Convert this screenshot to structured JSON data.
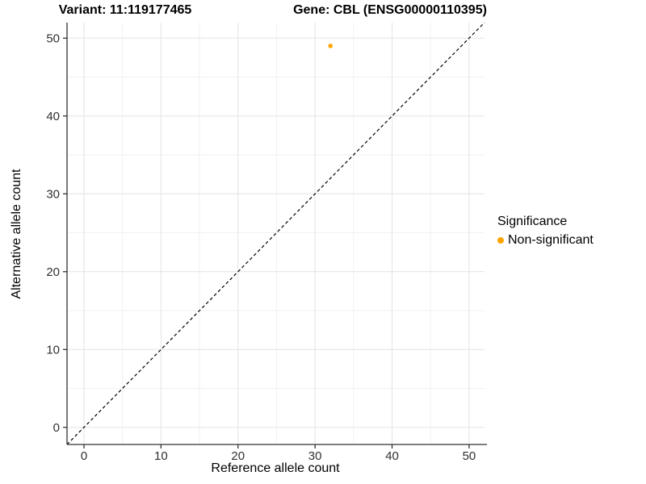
{
  "titles": {
    "left": "Variant: 11:119177465",
    "right": "Gene: CBL (ENSG00000110395)"
  },
  "chart_data": {
    "type": "scatter",
    "xlabel": "Reference allele count",
    "ylabel": "Alternative allele count",
    "xlim": [
      -2.2,
      52.0
    ],
    "ylim": [
      -2.2,
      52.0
    ],
    "xticks": [
      0,
      10,
      20,
      30,
      40,
      50
    ],
    "yticks": [
      0,
      10,
      20,
      30,
      40,
      50
    ],
    "minor_gridlines": [
      5,
      15,
      25,
      35,
      45
    ],
    "grid": true,
    "reference_line": {
      "type": "identity",
      "style": "dashed",
      "color": "#000000"
    },
    "points": [
      {
        "x": 32,
        "y": 49,
        "series": "Non-significant"
      }
    ],
    "legend": {
      "title": "Significance",
      "position": "right",
      "items": [
        {
          "label": "Non-significant",
          "color": "#FFA500"
        }
      ]
    }
  },
  "colors": {
    "point": "#FFA500",
    "grid_major": "#E3E3E3",
    "grid_minor": "#F1F1F1",
    "axis_line": "#333333",
    "tick_mark": "#333333",
    "tick_label": "#303030",
    "text": "#000000",
    "background": "#FFFFFF"
  }
}
